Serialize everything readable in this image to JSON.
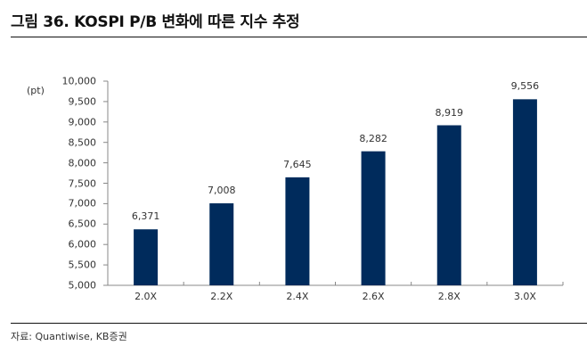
{
  "title": "그림 36. KOSPI P/B 변화에 따른 지수 추정",
  "source": "자료: Quantiwise, KB증권",
  "chart_data": {
    "type": "bar",
    "title": "그림 36. KOSPI P/B 변화에 따른 지수 추정",
    "xlabel": "",
    "ylabel": "(pt)",
    "categories": [
      "2.0X",
      "2.2X",
      "2.4X",
      "2.6X",
      "2.8X",
      "3.0X"
    ],
    "values": [
      6371,
      7008,
      7645,
      8282,
      8919,
      9556
    ],
    "value_labels": [
      "6,371",
      "7,008",
      "7,645",
      "8,282",
      "8,919",
      "9,556"
    ],
    "ylim": [
      5000,
      10000
    ],
    "yticks": [
      "10,000",
      "9,500",
      "9,000",
      "8,500",
      "8,000",
      "7,500",
      "7,000",
      "6,500",
      "6,000",
      "5,500",
      "5,000"
    ],
    "grid": false,
    "legend": "none",
    "bar_color": "#002b5c"
  }
}
